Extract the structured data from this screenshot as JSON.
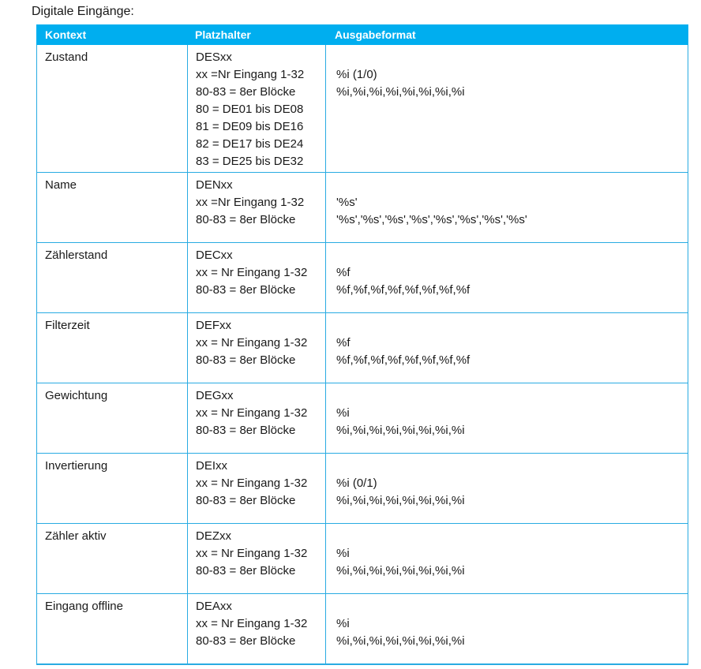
{
  "page": {
    "title": "Digitale Eingänge:"
  },
  "table": {
    "colors": {
      "header_bg": "#00AEEF",
      "header_text": "#FFFFFF",
      "border": "#29ABE2",
      "text": "#1A1A1A"
    },
    "headers": [
      {
        "label": "Kontext"
      },
      {
        "label": "Platzhalter"
      },
      {
        "label": "Ausgabeformat"
      }
    ],
    "rows": [
      {
        "kontext": "Zustand",
        "platzhalter": [
          "DESxx",
          "xx =Nr Eingang 1-32",
          "80-83 = 8er Blöcke",
          "80 = DE01 bis DE08",
          "81 = DE09 bis DE16",
          "82 = DE17 bis DE24",
          "83 = DE25 bis DE32"
        ],
        "ausgabeformat": [
          "",
          "%i (1/0)",
          "%i,%i,%i,%i,%i,%i,%i,%i"
        ]
      },
      {
        "kontext": "Name",
        "platzhalter": [
          "DENxx",
          "xx =Nr Eingang 1-32",
          "80-83 = 8er Blöcke"
        ],
        "ausgabeformat": [
          "",
          "'%s'",
          "'%s','%s','%s','%s','%s','%s','%s','%s'"
        ]
      },
      {
        "kontext": "Zählerstand",
        "platzhalter": [
          "DECxx",
          "xx = Nr Eingang 1-32",
          "80-83 = 8er Blöcke"
        ],
        "ausgabeformat": [
          "",
          "%f",
          "%f,%f,%f,%f,%f,%f,%f,%f"
        ]
      },
      {
        "kontext": "Filterzeit",
        "platzhalter": [
          "DEFxx",
          "xx = Nr Eingang 1-32",
          "80-83 = 8er Blöcke"
        ],
        "ausgabeformat": [
          "",
          "%f",
          "%f,%f,%f,%f,%f,%f,%f,%f"
        ]
      },
      {
        "kontext": "Gewichtung",
        "platzhalter": [
          "DEGxx",
          "xx = Nr Eingang 1-32",
          "80-83 = 8er Blöcke"
        ],
        "ausgabeformat": [
          "",
          "%i",
          "%i,%i,%i,%i,%i,%i,%i,%i"
        ]
      },
      {
        "kontext": "Invertierung",
        "platzhalter": [
          "DEIxx",
          "xx = Nr Eingang 1-32",
          "80-83 = 8er Blöcke"
        ],
        "ausgabeformat": [
          "",
          "%i (0/1)",
          "%i,%i,%i,%i,%i,%i,%i,%i"
        ]
      },
      {
        "kontext": "Zähler aktiv",
        "platzhalter": [
          "DEZxx",
          "xx = Nr Eingang 1-32",
          "80-83 = 8er Blöcke"
        ],
        "ausgabeformat": [
          "",
          "%i",
          "%i,%i,%i,%i,%i,%i,%i,%i"
        ]
      },
      {
        "kontext": "Eingang offline",
        "platzhalter": [
          "DEAxx",
          "xx = Nr Eingang 1-32",
          "80-83 = 8er Blöcke"
        ],
        "ausgabeformat": [
          "",
          "%i",
          "%i,%i,%i,%i,%i,%i,%i,%i"
        ]
      }
    ]
  }
}
